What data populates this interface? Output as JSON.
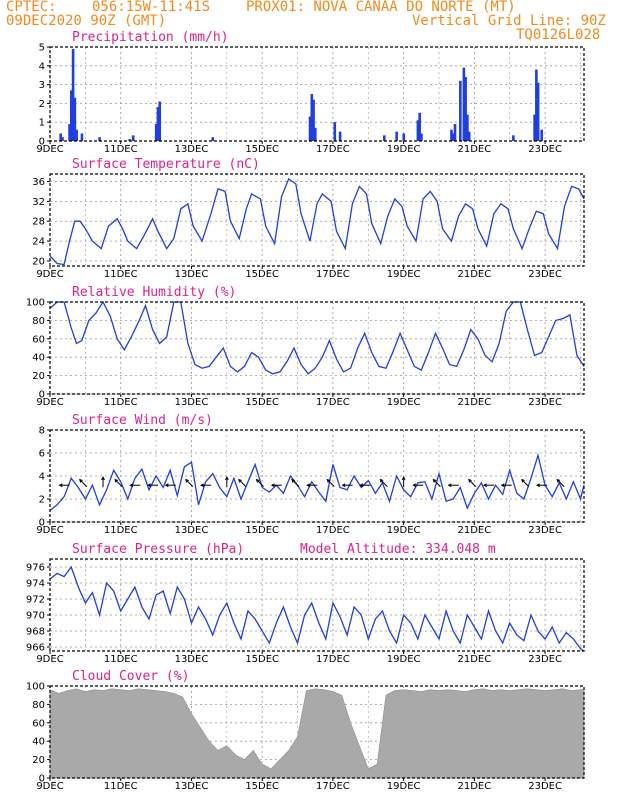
{
  "header": {
    "line1_left": "CPTEC:",
    "line1_coord": "056:15W-11:41S",
    "line1_station": "PROX01: NOVA CANAA DO NORTE (MT)",
    "line2_left": "09DEC2020 90Z (GMT)",
    "line2_right": "Vertical Grid Line: 90Z",
    "line3_right": "TQ0126L028"
  },
  "colors": {
    "header": "#f28a1c",
    "title": "#e0218a",
    "series": "#1f3fe0",
    "grid": "#999999",
    "cloud": "#a9a9a9"
  },
  "chart_data": [
    {
      "id": "precip",
      "type": "bar",
      "title": "Precipitation (mm/h)",
      "x_unit": "day of Dec 2020 (fractional)",
      "xlim": [
        9.0,
        24.1
      ],
      "x_tick_labels": [
        "9DEC",
        "11DEC",
        "13DEC",
        "15DEC",
        "17DEC",
        "19DEC",
        "21DEC",
        "23DEC"
      ],
      "ylim": [
        0,
        5
      ],
      "yticks": [
        0,
        1,
        2,
        3,
        4,
        5
      ],
      "x": [
        9.3,
        9.35,
        9.55,
        9.6,
        9.65,
        9.7,
        9.75,
        9.9,
        10.4,
        11.25,
        11.35,
        12.0,
        12.05,
        12.1,
        13.6,
        16.35,
        16.4,
        16.45,
        16.5,
        17.05,
        17.2,
        18.45,
        18.8,
        19.0,
        19.4,
        19.45,
        19.5,
        20.35,
        20.4,
        20.45,
        20.6,
        20.7,
        20.75,
        20.8,
        20.85,
        22.1,
        22.7,
        22.75,
        22.8,
        22.9
      ],
      "values": [
        0.4,
        0.2,
        0.9,
        2.7,
        4.9,
        2.3,
        0.6,
        0.4,
        0.2,
        0.1,
        0.3,
        0.9,
        1.8,
        2.1,
        0.2,
        1.3,
        2.5,
        2.2,
        0.7,
        1.0,
        0.5,
        0.3,
        0.5,
        0.4,
        1.1,
        1.5,
        0.4,
        0.6,
        0.4,
        0.9,
        3.2,
        3.9,
        3.4,
        1.4,
        0.5,
        0.3,
        1.4,
        3.8,
        3.1,
        0.6
      ]
    },
    {
      "id": "temp",
      "type": "line",
      "title": "Surface Temperature (nC)",
      "xlim": [
        9.0,
        24.1
      ],
      "x_tick_labels": [
        "9DEC",
        "11DEC",
        "13DEC",
        "15DEC",
        "17DEC",
        "19DEC",
        "21DEC",
        "23DEC"
      ],
      "ylim": [
        19,
        37.5
      ],
      "yticks": [
        20,
        24,
        28,
        32,
        36
      ],
      "x": [
        9.0,
        9.2,
        9.4,
        9.55,
        9.7,
        9.85,
        10.0,
        10.2,
        10.45,
        10.65,
        10.9,
        11.05,
        11.2,
        11.45,
        11.65,
        11.9,
        12.05,
        12.3,
        12.5,
        12.7,
        12.9,
        13.05,
        13.3,
        13.55,
        13.75,
        13.95,
        14.1,
        14.35,
        14.55,
        14.7,
        14.95,
        15.1,
        15.35,
        15.55,
        15.75,
        15.95,
        16.1,
        16.35,
        16.55,
        16.7,
        16.95,
        17.1,
        17.35,
        17.55,
        17.75,
        17.95,
        18.1,
        18.35,
        18.55,
        18.75,
        18.95,
        19.1,
        19.35,
        19.55,
        19.75,
        19.95,
        20.1,
        20.35,
        20.55,
        20.75,
        20.95,
        21.1,
        21.35,
        21.55,
        21.75,
        21.95,
        22.1,
        22.35,
        22.55,
        22.75,
        22.95,
        23.1,
        23.35,
        23.55,
        23.75,
        23.95,
        24.1
      ],
      "values": [
        21.0,
        19.5,
        19.3,
        24,
        28.0,
        28.0,
        26.5,
        24.0,
        22.5,
        27.0,
        28.5,
        26.5,
        24.0,
        22.5,
        25.0,
        28.5,
        26.0,
        22.5,
        24.5,
        30.5,
        31.5,
        27.0,
        24.0,
        29.5,
        34.5,
        34.0,
        28.0,
        24.5,
        30.5,
        33.5,
        32.5,
        27.0,
        23.5,
        33.0,
        36.5,
        35.5,
        29.5,
        24.0,
        31.5,
        33.5,
        32.0,
        26.0,
        22.5,
        31.5,
        35.0,
        33.5,
        27.5,
        23.5,
        29.0,
        32.5,
        31.0,
        27.0,
        24.0,
        32.5,
        34.0,
        32.0,
        26.5,
        24.0,
        29.0,
        31.5,
        30.5,
        26.5,
        23.0,
        29.5,
        31.5,
        30.5,
        26.5,
        22.5,
        26.5,
        30.0,
        29.5,
        25.5,
        22.5,
        31.0,
        35.0,
        34.5,
        32.5
      ]
    },
    {
      "id": "rh",
      "type": "line",
      "title": "Relative Humidity (%)",
      "xlim": [
        9.0,
        24.1
      ],
      "x_tick_labels": [
        "9DEC",
        "11DEC",
        "13DEC",
        "15DEC",
        "17DEC",
        "19DEC",
        "21DEC",
        "23DEC"
      ],
      "ylim": [
        0,
        100
      ],
      "yticks": [
        0,
        20,
        40,
        60,
        80,
        100
      ],
      "x": [
        9.0,
        9.2,
        9.4,
        9.6,
        9.75,
        9.9,
        10.1,
        10.3,
        10.5,
        10.7,
        10.9,
        11.1,
        11.3,
        11.5,
        11.7,
        11.9,
        12.1,
        12.3,
        12.5,
        12.7,
        12.9,
        13.1,
        13.3,
        13.5,
        13.7,
        13.9,
        14.1,
        14.3,
        14.5,
        14.7,
        14.9,
        15.1,
        15.3,
        15.5,
        15.7,
        15.9,
        16.1,
        16.3,
        16.5,
        16.7,
        16.9,
        17.1,
        17.3,
        17.5,
        17.7,
        17.9,
        18.1,
        18.3,
        18.5,
        18.7,
        18.9,
        19.1,
        19.3,
        19.5,
        19.7,
        19.9,
        20.1,
        20.3,
        20.5,
        20.7,
        20.9,
        21.1,
        21.3,
        21.5,
        21.7,
        21.9,
        22.1,
        22.3,
        22.5,
        22.7,
        22.9,
        23.1,
        23.3,
        23.5,
        23.7,
        23.9,
        24.1
      ],
      "values": [
        93,
        100,
        100,
        72,
        55,
        58,
        80,
        88,
        100,
        85,
        60,
        48,
        62,
        78,
        96,
        70,
        55,
        62,
        100,
        100,
        55,
        32,
        28,
        30,
        40,
        50,
        30,
        24,
        30,
        45,
        40,
        26,
        22,
        24,
        35,
        50,
        32,
        22,
        28,
        40,
        58,
        38,
        24,
        28,
        50,
        66,
        45,
        30,
        28,
        46,
        66,
        48,
        30,
        26,
        45,
        66,
        50,
        32,
        30,
        48,
        70,
        60,
        42,
        35,
        55,
        90,
        100,
        100,
        70,
        42,
        45,
        62,
        80,
        82,
        86,
        42,
        30
      ]
    },
    {
      "id": "wind",
      "type": "line",
      "title": "Surface Wind (m/s)",
      "xlim": [
        9.0,
        24.1
      ],
      "x_tick_labels": [
        "9DEC",
        "11DEC",
        "13DEC",
        "15DEC",
        "17DEC",
        "19DEC",
        "21DEC",
        "23DEC"
      ],
      "ylim": [
        0,
        8
      ],
      "yticks": [
        0,
        2,
        4,
        6,
        8
      ],
      "x": [
        9.0,
        9.2,
        9.4,
        9.6,
        9.8,
        10.0,
        10.2,
        10.4,
        10.6,
        10.8,
        11.0,
        11.2,
        11.4,
        11.6,
        11.8,
        12.0,
        12.2,
        12.4,
        12.6,
        12.8,
        13.0,
        13.2,
        13.4,
        13.6,
        13.8,
        14.0,
        14.2,
        14.4,
        14.6,
        14.8,
        15.0,
        15.2,
        15.4,
        15.6,
        15.8,
        16.0,
        16.2,
        16.4,
        16.6,
        16.8,
        17.0,
        17.2,
        17.4,
        17.6,
        17.8,
        18.0,
        18.2,
        18.4,
        18.6,
        18.8,
        19.0,
        19.2,
        19.4,
        19.6,
        19.8,
        20.0,
        20.2,
        20.4,
        20.6,
        20.8,
        21.0,
        21.2,
        21.4,
        21.6,
        21.8,
        22.0,
        22.2,
        22.4,
        22.6,
        22.8,
        23.0,
        23.2,
        23.4,
        23.6,
        23.8,
        24.0,
        24.1
      ],
      "values": [
        1.0,
        1.5,
        2.2,
        3.8,
        3.0,
        2.0,
        3.2,
        1.5,
        2.8,
        4.5,
        3.5,
        2.0,
        3.8,
        4.6,
        2.8,
        4.0,
        3.0,
        4.5,
        2.3,
        4.8,
        5.2,
        1.5,
        3.5,
        4.2,
        3.0,
        2.2,
        3.8,
        2.0,
        3.5,
        5.0,
        3.0,
        2.6,
        3.2,
        2.5,
        4.0,
        3.2,
        2.2,
        3.5,
        2.6,
        1.8,
        5.0,
        3.0,
        2.8,
        4.0,
        3.0,
        3.6,
        2.5,
        3.4,
        1.8,
        4.0,
        2.8,
        2.2,
        3.4,
        3.5,
        2.0,
        4.2,
        1.8,
        2.0,
        3.0,
        1.2,
        2.5,
        3.4,
        2.0,
        3.2,
        2.4,
        4.5,
        2.5,
        2.0,
        3.8,
        5.8,
        3.2,
        2.2,
        3.4,
        2.0,
        3.5,
        2.0,
        3.2
      ],
      "barbs": [
        {
          "x": 9.5,
          "dir": "w"
        },
        {
          "x": 10.0,
          "dir": "nw"
        },
        {
          "x": 10.5,
          "dir": "n"
        },
        {
          "x": 11.0,
          "dir": "nw"
        },
        {
          "x": 11.5,
          "dir": "w"
        },
        {
          "x": 12.0,
          "dir": "w"
        },
        {
          "x": 12.5,
          "dir": "w"
        },
        {
          "x": 13.0,
          "dir": "nw"
        },
        {
          "x": 13.5,
          "dir": "w"
        },
        {
          "x": 14.0,
          "dir": "n"
        },
        {
          "x": 14.5,
          "dir": "nw"
        },
        {
          "x": 15.0,
          "dir": "nw"
        },
        {
          "x": 15.5,
          "dir": "w"
        },
        {
          "x": 16.0,
          "dir": "nw"
        },
        {
          "x": 16.5,
          "dir": "w"
        },
        {
          "x": 17.0,
          "dir": "nw"
        },
        {
          "x": 17.5,
          "dir": "w"
        },
        {
          "x": 18.0,
          "dir": "w"
        },
        {
          "x": 18.5,
          "dir": "nw"
        },
        {
          "x": 19.0,
          "dir": "n"
        },
        {
          "x": 19.5,
          "dir": "w"
        },
        {
          "x": 20.0,
          "dir": "nw"
        },
        {
          "x": 20.5,
          "dir": "w"
        },
        {
          "x": 21.0,
          "dir": "nw"
        },
        {
          "x": 21.5,
          "dir": "w"
        },
        {
          "x": 22.0,
          "dir": "w"
        },
        {
          "x": 22.5,
          "dir": "nw"
        },
        {
          "x": 23.0,
          "dir": "w"
        },
        {
          "x": 23.5,
          "dir": "nw"
        }
      ]
    },
    {
      "id": "pressure",
      "type": "line",
      "title": "Surface Pressure (hPa)",
      "annotation": "Model Altitude: 334.048 m",
      "xlim": [
        9.0,
        24.1
      ],
      "x_tick_labels": [
        "9DEC",
        "11DEC",
        "13DEC",
        "15DEC",
        "17DEC",
        "19DEC",
        "21DEC",
        "23DEC"
      ],
      "ylim": [
        965.5,
        977
      ],
      "yticks": [
        966,
        968,
        970,
        972,
        974,
        976
      ],
      "x": [
        9.0,
        9.2,
        9.4,
        9.6,
        9.8,
        10.0,
        10.2,
        10.4,
        10.6,
        10.8,
        11.0,
        11.2,
        11.4,
        11.6,
        11.8,
        12.0,
        12.2,
        12.4,
        12.6,
        12.8,
        13.0,
        13.2,
        13.4,
        13.6,
        13.8,
        14.0,
        14.2,
        14.4,
        14.6,
        14.8,
        15.0,
        15.2,
        15.4,
        15.6,
        15.8,
        16.0,
        16.2,
        16.4,
        16.6,
        16.8,
        17.0,
        17.2,
        17.4,
        17.6,
        17.8,
        18.0,
        18.2,
        18.4,
        18.6,
        18.8,
        19.0,
        19.2,
        19.4,
        19.6,
        19.8,
        20.0,
        20.2,
        20.4,
        20.6,
        20.8,
        21.0,
        21.2,
        21.4,
        21.6,
        21.8,
        22.0,
        22.2,
        22.4,
        22.6,
        22.8,
        23.0,
        23.2,
        23.4,
        23.6,
        23.8,
        24.0,
        24.1
      ],
      "values": [
        974.5,
        975.2,
        974.8,
        976.0,
        973.5,
        971.5,
        972.8,
        970.0,
        974.0,
        973.0,
        970.5,
        972.0,
        973.5,
        971.0,
        969.5,
        972.5,
        973.0,
        970.2,
        973.5,
        972.0,
        969.0,
        971.0,
        969.5,
        967.5,
        970.0,
        971.5,
        969.0,
        967.0,
        970.5,
        969.5,
        968.0,
        966.5,
        969.0,
        971.0,
        968.5,
        966.5,
        970.0,
        971.5,
        969.0,
        967.0,
        971.5,
        969.8,
        967.5,
        971.0,
        970.0,
        967.0,
        969.5,
        970.5,
        968.0,
        966.5,
        970.0,
        969.0,
        967.0,
        970.0,
        968.5,
        967.0,
        970.5,
        968.0,
        966.5,
        970.0,
        968.5,
        967.0,
        970.5,
        968.0,
        966.5,
        969.0,
        967.5,
        966.8,
        970.0,
        968.0,
        967.0,
        968.5,
        966.5,
        967.8,
        967.0,
        965.8,
        965.5
      ]
    },
    {
      "id": "cloud",
      "type": "area",
      "title": "Cloud Cover (%)",
      "xlim": [
        9.0,
        24.1
      ],
      "x_tick_labels": [
        "9DEC",
        "11DEC",
        "13DEC",
        "15DEC",
        "17DEC",
        "19DEC",
        "21DEC",
        "23DEC"
      ],
      "ylim": [
        0,
        100
      ],
      "yticks": [
        0,
        20,
        40,
        60,
        80,
        100
      ],
      "x": [
        9.0,
        9.25,
        9.5,
        9.75,
        10.0,
        10.25,
        10.5,
        10.75,
        11.0,
        11.25,
        11.5,
        11.75,
        12.0,
        12.25,
        12.5,
        12.75,
        13.0,
        13.25,
        13.5,
        13.75,
        14.0,
        14.25,
        14.5,
        14.75,
        15.0,
        15.25,
        15.5,
        15.75,
        16.0,
        16.25,
        16.5,
        16.75,
        17.0,
        17.25,
        17.5,
        17.75,
        18.0,
        18.25,
        18.5,
        18.75,
        19.0,
        19.25,
        19.5,
        19.75,
        20.0,
        20.25,
        20.5,
        20.75,
        21.0,
        21.25,
        21.5,
        21.75,
        22.0,
        22.25,
        22.5,
        22.75,
        23.0,
        23.25,
        23.5,
        23.75,
        24.0,
        24.1
      ],
      "values": [
        96,
        92,
        95,
        97,
        94,
        96,
        95,
        97,
        96,
        95,
        97,
        96,
        95,
        94,
        92,
        88,
        70,
        55,
        40,
        30,
        35,
        25,
        20,
        30,
        15,
        10,
        20,
        30,
        45,
        95,
        97,
        96,
        94,
        90,
        60,
        35,
        10,
        15,
        90,
        95,
        96,
        95,
        94,
        96,
        95,
        96,
        95,
        94,
        96,
        97,
        95,
        96,
        95,
        96,
        97,
        96,
        95,
        96,
        97,
        95,
        96,
        96
      ]
    }
  ]
}
